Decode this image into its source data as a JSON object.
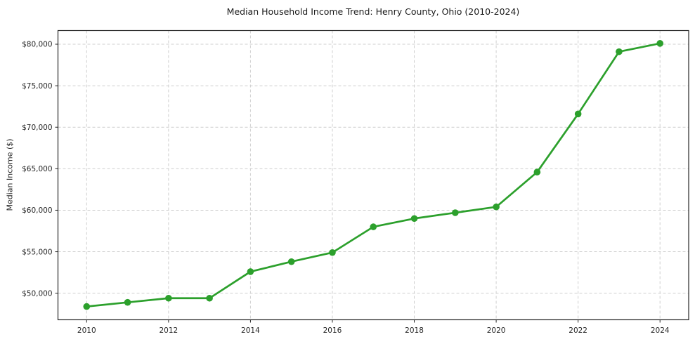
{
  "chart_data": {
    "type": "line",
    "title": "Median Household Income Trend: Henry County, Ohio (2010-2024)",
    "xlabel": "",
    "ylabel": "Median Income ($)",
    "x": [
      2010,
      2011,
      2012,
      2013,
      2014,
      2015,
      2016,
      2017,
      2018,
      2019,
      2020,
      2021,
      2022,
      2023,
      2024
    ],
    "values": [
      48400,
      48900,
      49400,
      49400,
      52600,
      53800,
      54900,
      58000,
      59000,
      59700,
      60400,
      64600,
      71600,
      79100,
      80100
    ],
    "xlim": [
      2009.3,
      2024.7
    ],
    "ylim": [
      46800,
      81650
    ],
    "xticks": [
      2010,
      2012,
      2014,
      2016,
      2018,
      2020,
      2022,
      2024
    ],
    "xticklabels": [
      "2010",
      "2012",
      "2014",
      "2016",
      "2018",
      "2020",
      "2022",
      "2024"
    ],
    "yticks": [
      50000,
      55000,
      60000,
      65000,
      70000,
      75000,
      80000
    ],
    "yticklabels": [
      "$50,000",
      "$55,000",
      "$60,000",
      "$65,000",
      "$70,000",
      "$75,000",
      "$80,000"
    ],
    "grid": true,
    "grid_style": "dashed",
    "legend": null,
    "marker": "circle",
    "colors": {
      "line": "#2ca02c",
      "marker": "#2ca02c",
      "grid": "#cfcfcf",
      "spine": "#262626",
      "tick_label": "#262626",
      "background": "#ffffff"
    }
  }
}
